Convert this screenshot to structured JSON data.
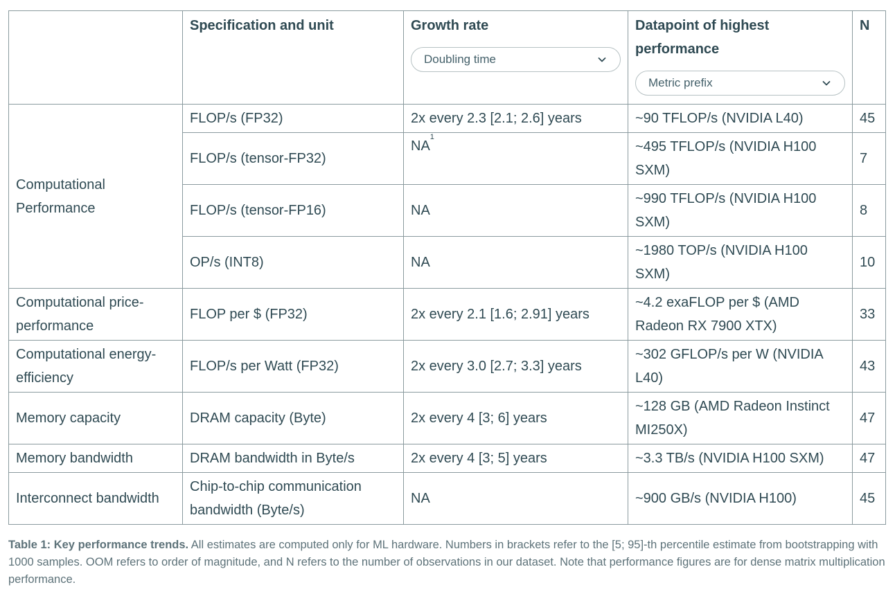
{
  "table": {
    "headers": {
      "spec": "Specification and unit",
      "growth": "Growth rate",
      "datapoint": "Datapoint of highest performance",
      "n": "N"
    },
    "growth_select": "Doubling time",
    "datapoint_select": "Metric prefix",
    "groups": {
      "computational_performance": "Computational Performance",
      "price_performance": "Computational price-performance",
      "energy_efficiency": "Computational energy-efficiency",
      "memory_capacity": "Memory capacity",
      "memory_bandwidth": "Memory bandwidth",
      "interconnect_bandwidth": "Interconnect bandwidth"
    },
    "rows": [
      {
        "spec": "FLOP/s (FP32)",
        "growth": "2x every 2.3 [2.1; 2.6] years",
        "datapoint": "~90 TFLOP/s (NVIDIA L40)",
        "n": "45"
      },
      {
        "spec": "FLOP/s (tensor-FP32)",
        "growth": "NA",
        "footnote": "1",
        "datapoint": "~495 TFLOP/s (NVIDIA H100 SXM)",
        "n": "7"
      },
      {
        "spec": "FLOP/s (tensor-FP16)",
        "growth": "NA",
        "datapoint": "~990 TFLOP/s (NVIDIA H100 SXM)",
        "n": "8"
      },
      {
        "spec": "OP/s (INT8)",
        "growth": "NA",
        "datapoint": "~1980 TOP/s (NVIDIA H100 SXM)",
        "n": "10"
      },
      {
        "spec": "FLOP per $ (FP32)",
        "growth": "2x every 2.1 [1.6; 2.91] years",
        "datapoint": "~4.2 exaFLOP per $ (AMD Radeon RX 7900 XTX)",
        "n": "33"
      },
      {
        "spec": "FLOP/s per Watt (FP32)",
        "growth": "2x every 3.0 [2.7; 3.3] years",
        "datapoint": "~302 GFLOP/s per W (NVIDIA L40)",
        "n": "43"
      },
      {
        "spec": "DRAM capacity (Byte)",
        "growth": "2x every 4 [3; 6] years",
        "datapoint": "~128 GB (AMD Radeon Instinct MI250X)",
        "n": "47"
      },
      {
        "spec": "DRAM bandwidth in Byte/s",
        "growth": "2x every 4 [3; 5] years",
        "datapoint": "~3.3 TB/s (NVIDIA H100 SXM)",
        "n": "47"
      },
      {
        "spec": "Chip-to-chip communication bandwidth (Byte/s)",
        "growth": "NA",
        "datapoint": "~900 GB/s (NVIDIA H100)",
        "n": "45"
      }
    ]
  },
  "caption": {
    "label": "Table 1: Key performance trends.",
    "text": " All estimates are computed only for ML hardware. Numbers in brackets refer to the [5; 95]-th percentile estimate from bootstrapping with 1000 samples. OOM refers to order of magnitude, and N refers to the number of observations in our dataset. Note that performance figures are for dense matrix multiplication performance."
  },
  "icons": {
    "dropdown": "chevron-down-icon"
  }
}
